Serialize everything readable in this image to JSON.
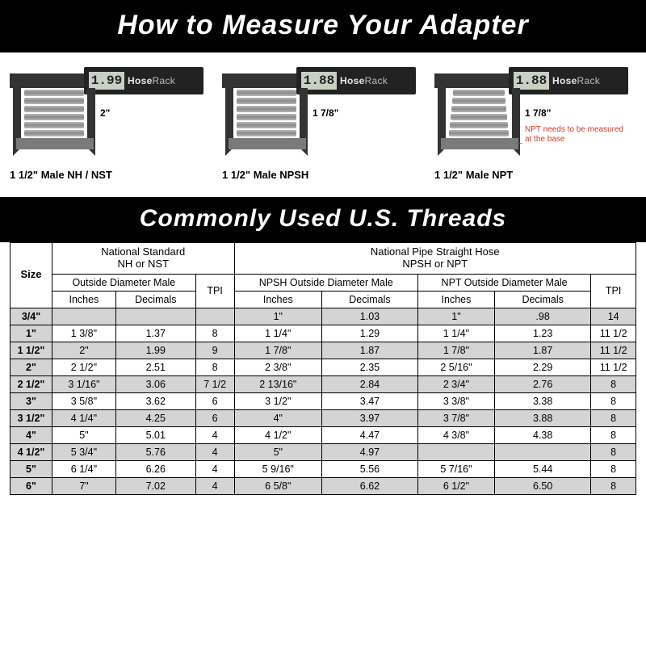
{
  "banners": {
    "top": "How to Measure Your Adapter",
    "middle": "Commonly Used U.S. Threads"
  },
  "brand": {
    "a": "Hose",
    "b": "Rack"
  },
  "calipers": [
    {
      "reading": "1.99",
      "dim": "2\"",
      "caption": "1 1/2\" Male NH / NST",
      "tapered": false,
      "npt_note": ""
    },
    {
      "reading": "1.88",
      "dim": "1 7/8\"",
      "caption": "1 1/2\" Male NPSH",
      "tapered": false,
      "npt_note": ""
    },
    {
      "reading": "1.88",
      "dim": "1 7/8\"",
      "caption": "1 1/2\" Male NPT",
      "tapered": true,
      "npt_note": "NPT needs to be measured at the base"
    }
  ],
  "table": {
    "headers": {
      "size": "Size",
      "ns_title": "National Standard",
      "ns_sub": "NH or NST",
      "np_title": "National Pipe Straight Hose",
      "np_sub": "NPSH or NPT",
      "od_male": "Outside Diameter Male",
      "tpi": "TPI",
      "npsh_od": "NPSH Outside Diameter Male",
      "npt_od": "NPT Outside Diameter Male",
      "inches": "Inches",
      "decimals": "Decimals"
    },
    "rows": [
      {
        "size": "3/4\"",
        "ns_in": "",
        "ns_dec": "",
        "ns_tpi": "",
        "npsh_in": "1\"",
        "npsh_dec": "1.03",
        "npt_in": "1\"",
        "npt_dec": ".98",
        "np_tpi": "14"
      },
      {
        "size": "1\"",
        "ns_in": "1 3/8\"",
        "ns_dec": "1.37",
        "ns_tpi": "8",
        "npsh_in": "1 1/4\"",
        "npsh_dec": "1.29",
        "npt_in": "1 1/4\"",
        "npt_dec": "1.23",
        "np_tpi": "11 1/2"
      },
      {
        "size": "1 1/2\"",
        "ns_in": "2\"",
        "ns_dec": "1.99",
        "ns_tpi": "9",
        "npsh_in": "1 7/8\"",
        "npsh_dec": "1.87",
        "npt_in": "1 7/8\"",
        "npt_dec": "1.87",
        "np_tpi": "11 1/2"
      },
      {
        "size": "2\"",
        "ns_in": "2 1/2\"",
        "ns_dec": "2.51",
        "ns_tpi": "8",
        "npsh_in": "2 3/8\"",
        "npsh_dec": "2.35",
        "npt_in": "2 5/16\"",
        "npt_dec": "2.29",
        "np_tpi": "11 1/2"
      },
      {
        "size": "2 1/2\"",
        "ns_in": "3 1/16\"",
        "ns_dec": "3.06",
        "ns_tpi": "7 1/2",
        "npsh_in": "2 13/16\"",
        "npsh_dec": "2.84",
        "npt_in": "2 3/4\"",
        "npt_dec": "2.76",
        "np_tpi": "8"
      },
      {
        "size": "3\"",
        "ns_in": "3 5/8\"",
        "ns_dec": "3.62",
        "ns_tpi": "6",
        "npsh_in": "3 1/2\"",
        "npsh_dec": "3.47",
        "npt_in": "3 3/8\"",
        "npt_dec": "3.38",
        "np_tpi": "8"
      },
      {
        "size": "3 1/2\"",
        "ns_in": "4 1/4\"",
        "ns_dec": "4.25",
        "ns_tpi": "6",
        "npsh_in": "4\"",
        "npsh_dec": "3.97",
        "npt_in": "3 7/8\"",
        "npt_dec": "3.88",
        "np_tpi": "8"
      },
      {
        "size": "4\"",
        "ns_in": "5\"",
        "ns_dec": "5.01",
        "ns_tpi": "4",
        "npsh_in": "4 1/2\"",
        "npsh_dec": "4.47",
        "npt_in": "4 3/8\"",
        "npt_dec": "4.38",
        "np_tpi": "8"
      },
      {
        "size": "4 1/2\"",
        "ns_in": "5 3/4\"",
        "ns_dec": "5.76",
        "ns_tpi": "4",
        "npsh_in": "5\"",
        "npsh_dec": "4.97",
        "npt_in": "",
        "npt_dec": "",
        "np_tpi": "8"
      },
      {
        "size": "5\"",
        "ns_in": "6 1/4\"",
        "ns_dec": "6.26",
        "ns_tpi": "4",
        "npsh_in": "5 9/16\"",
        "npsh_dec": "5.56",
        "npt_in": "5 7/16\"",
        "npt_dec": "5.44",
        "np_tpi": "8"
      },
      {
        "size": "6\"",
        "ns_in": "7\"",
        "ns_dec": "7.02",
        "ns_tpi": "4",
        "npsh_in": "6 5/8\"",
        "npsh_dec": "6.62",
        "npt_in": "6 1/2\"",
        "npt_dec": "6.50",
        "np_tpi": "8"
      }
    ]
  },
  "colors": {
    "banner_bg": "#000000",
    "banner_fg": "#ffffff",
    "shade": "#d4d4d4",
    "note_red": "#d23a2a"
  }
}
